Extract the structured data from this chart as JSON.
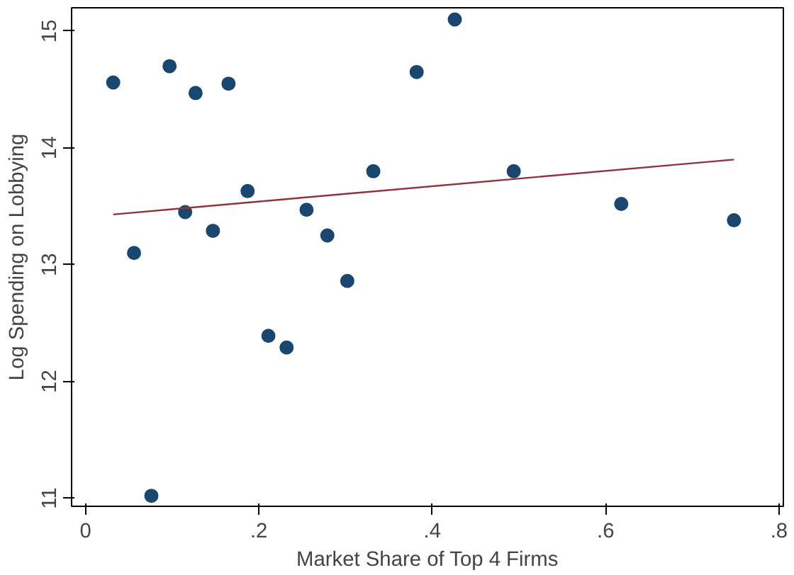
{
  "chart_data": {
    "type": "scatter",
    "xlabel": "Market Share of Top 4 Firms",
    "ylabel": "Log Spending on Lobbying",
    "series": [
      {
        "color": "#1a476f",
        "marker": "circle",
        "x": [
          0.032,
          0.056,
          0.076,
          0.097,
          0.115,
          0.127,
          0.147,
          0.165,
          0.187,
          0.211,
          0.232,
          0.255,
          0.279,
          0.302,
          0.332,
          0.382,
          0.426,
          0.494,
          0.618,
          0.748
        ],
        "values": [
          14.56,
          13.1,
          11.02,
          14.7,
          13.45,
          14.47,
          13.29,
          14.55,
          13.63,
          12.39,
          12.29,
          13.47,
          13.25,
          12.86,
          13.8,
          14.65,
          15.1,
          13.8,
          13.52,
          13.38
        ]
      },
      {
        "type": "line",
        "marker": "none",
        "color": "#90353b",
        "x": [
          0.032,
          0.748
        ],
        "values": [
          13.43,
          13.9
        ]
      }
    ],
    "grid": false,
    "xlim": [
      -0.016,
      0.805
    ],
    "ylim": [
      10.93,
      15.2
    ],
    "xticks": [
      {
        "value": 0,
        "label": "0"
      },
      {
        "value": 0.2,
        "label": ".2"
      },
      {
        "value": 0.4,
        "label": ".4"
      },
      {
        "value": 0.6,
        "label": ".6"
      },
      {
        "value": 0.8,
        "label": ".8"
      }
    ],
    "yticks": [
      11,
      12,
      13,
      14,
      15
    ]
  }
}
